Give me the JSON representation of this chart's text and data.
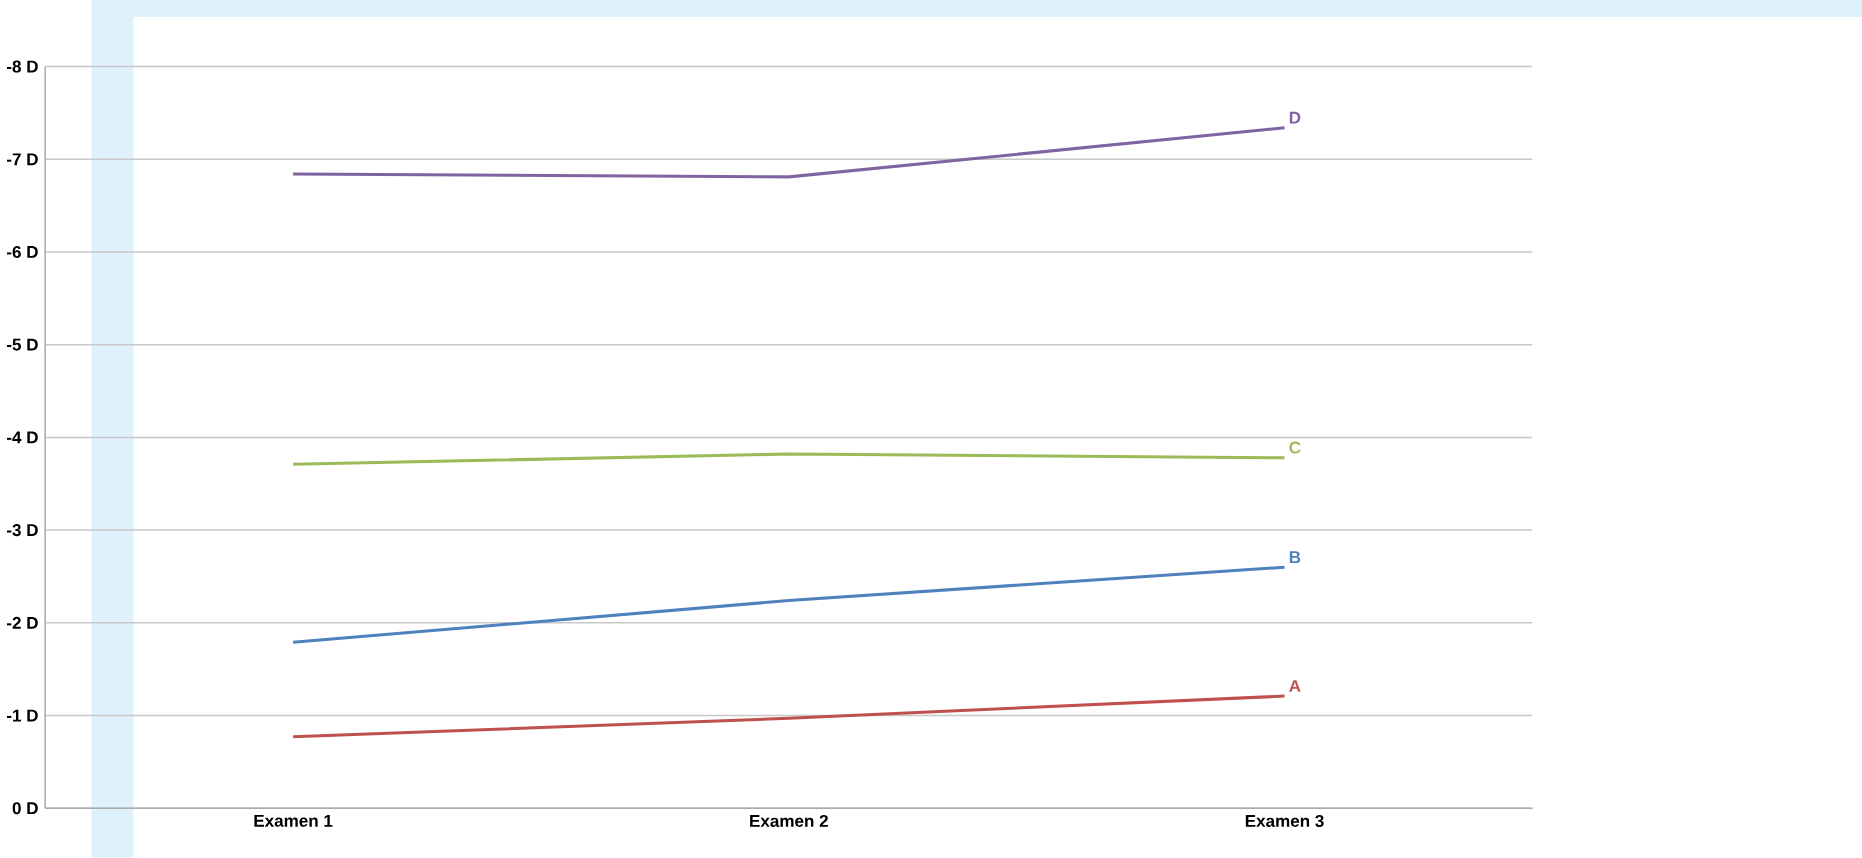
{
  "chart_data": {
    "type": "line",
    "categories": [
      "Examen 1",
      "Examen 2",
      "Examen 3"
    ],
    "series": [
      {
        "name": "A",
        "color": "#c0504d",
        "values": [
          -0.77,
          -0.97,
          -1.21
        ]
      },
      {
        "name": "B",
        "color": "#4f81bd",
        "values": [
          -1.79,
          -2.24,
          -2.6
        ]
      },
      {
        "name": "C",
        "color": "#9bbb59",
        "values": [
          -3.71,
          -3.82,
          -3.78
        ]
      },
      {
        "name": "D",
        "color": "#8064a2",
        "values": [
          -6.84,
          -6.81,
          -7.34
        ]
      }
    ],
    "ylim": [
      0,
      -8
    ],
    "yticks": [
      {
        "value": 0,
        "label": "0 D"
      },
      {
        "value": -1,
        "label": "-1 D"
      },
      {
        "value": -2,
        "label": "-2 D"
      },
      {
        "value": -3,
        "label": "-3 D"
      },
      {
        "value": -4,
        "label": "-4 D"
      },
      {
        "value": -5,
        "label": "-5 D"
      },
      {
        "value": -6,
        "label": "-6 D"
      },
      {
        "value": -7,
        "label": "-7 D"
      },
      {
        "value": -8,
        "label": "-8 D"
      }
    ],
    "grid": "y",
    "legend": false,
    "marker": "none",
    "line_style": "solid"
  }
}
